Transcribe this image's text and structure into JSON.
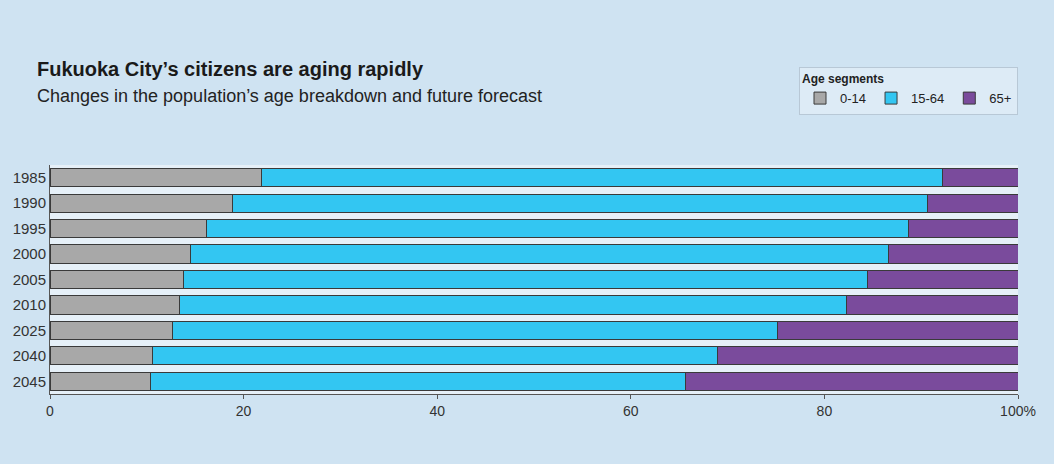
{
  "chart_data": {
    "type": "bar",
    "title": "Fukuoka City’s citizens are aging rapidly",
    "subtitle": "Changes in the population’s age breakdown and future forecast",
    "orientation": "horizontal",
    "stacked": true,
    "grid": false,
    "legend": "top right",
    "legend_title": "Age segments",
    "categories": [
      "1985",
      "1990",
      "1995",
      "2000",
      "2005",
      "2010",
      "2025",
      "2040",
      "2045"
    ],
    "series": [
      {
        "name": "0-14",
        "color": "#a8a8a8",
        "values": [
          21.9,
          18.9,
          16.2,
          14.5,
          13.8,
          13.4,
          12.7,
          10.6,
          10.4
        ]
      },
      {
        "name": "15-64",
        "color": "#33c6f2",
        "values": [
          70.3,
          71.8,
          72.5,
          72.1,
          70.7,
          68.9,
          62.5,
          58.4,
          55.2
        ]
      },
      {
        "name": "65+",
        "color": "#7a4b9c",
        "values": [
          7.8,
          9.3,
          11.3,
          13.4,
          15.5,
          17.7,
          24.8,
          31.0,
          34.4
        ]
      }
    ],
    "xlim": [
      0,
      100
    ],
    "xticks": [
      0,
      20,
      40,
      60,
      80,
      {
        "value": 100,
        "label": "100%"
      }
    ]
  }
}
